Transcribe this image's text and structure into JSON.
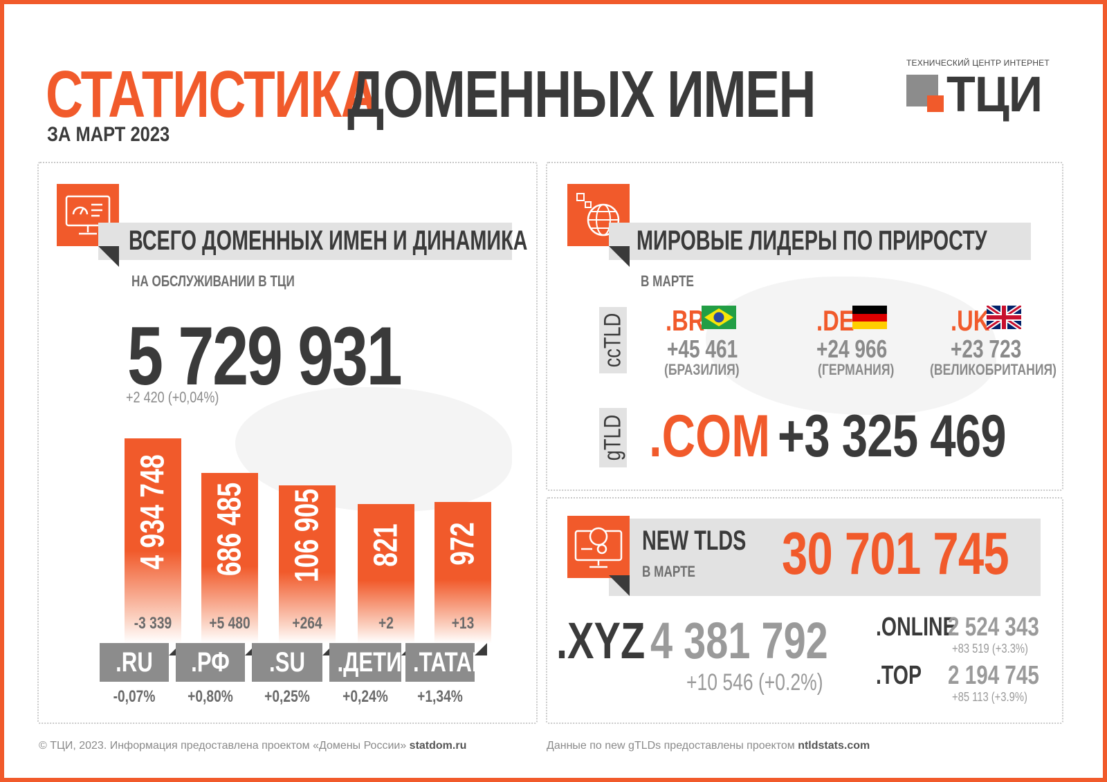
{
  "header": {
    "title_accent": "СТАТИСТИКА",
    "title_rest": "ДОМЕННЫХ ИМЕН",
    "period": "ЗА МАРТ 2023"
  },
  "logo": {
    "caption": "ТЕХНИЧЕСКИЙ ЦЕНТР ИНТЕРНЕТ",
    "text": "ТЦИ"
  },
  "total": {
    "section_title": "ВСЕГО ДОМЕННЫХ ИМЕН И ДИНАМИКА",
    "subtitle": "НА ОБСЛУЖИВАНИИ В ТЦИ",
    "value": "5 729 931",
    "delta": "+2 420 (+0,04%)",
    "icon": "monitor-dashboard-icon"
  },
  "chart_data": {
    "type": "bar",
    "categories": [
      ".RU",
      ".РФ",
      ".SU",
      ".ДЕТИ",
      ".TATAR"
    ],
    "values": [
      4934748,
      686485,
      106905,
      821,
      972
    ],
    "value_labels": [
      "4 934 748",
      "686 485",
      "106 905",
      "821",
      "972"
    ],
    "deltas": [
      "-3 339",
      "+5 480",
      "+264",
      "+2",
      "+13"
    ],
    "percent_changes": [
      "-0,07%",
      "+0,80%",
      "+0,25%",
      "+0,24%",
      "+1,34%"
    ],
    "fill_levels": [
      1.0,
      0.83,
      0.77,
      0.68,
      0.69
    ],
    "title": "",
    "xlabel": "",
    "ylabel": ""
  },
  "leaders": {
    "section_title": "МИРОВЫЕ ЛИДЕРЫ ПО ПРИРОСТУ",
    "subtitle": "В МАРТЕ",
    "icon": "globe-network-icon",
    "cctld_label": "ccTLD",
    "gtld_label": "gTLD",
    "cctld": [
      {
        "tld": ".BR",
        "value": "+45 461",
        "country": "(БРАЗИЛИЯ)",
        "flag": "brazil-flag-icon"
      },
      {
        "tld": ".DE",
        "value": "+24 966",
        "country": "(ГЕРМАНИЯ)",
        "flag": "germany-flag-icon"
      },
      {
        "tld": ".UK",
        "value": "+23 723",
        "country": "(ВЕЛИКОБРИТАНИЯ)",
        "flag": "uk-flag-icon"
      }
    ],
    "gtld": {
      "tld": ".COM",
      "value": "+3 325 469"
    }
  },
  "new_tlds": {
    "title": "NEW TLDS",
    "subtitle": "В МАРТЕ",
    "value": "30 701 745",
    "icon": "globe-settings-monitor-icon",
    "xyz": {
      "tld": ".XYZ",
      "value": "4 381 792",
      "delta": "+10 546 (+0.2%)"
    },
    "online": {
      "tld": ".ONLINE",
      "value": "2 524 343",
      "delta": "+83 519 (+3.3%)"
    },
    "top": {
      "tld": ".TOP",
      "value": "2 194 745",
      "delta": "+85 113 (+3.9%)"
    }
  },
  "footer": {
    "left_text": "© ТЦИ, 2023.  Информация предоставлена проектом «Домены России» ",
    "left_link": "statdom.ru",
    "right_text": "Данные по new gTLDs предоставлены проектом ",
    "right_link": "ntldstats.com"
  },
  "colors": {
    "accent": "#f15a2b",
    "dark": "#3a3a3a",
    "grey": "#8c8c8c"
  }
}
